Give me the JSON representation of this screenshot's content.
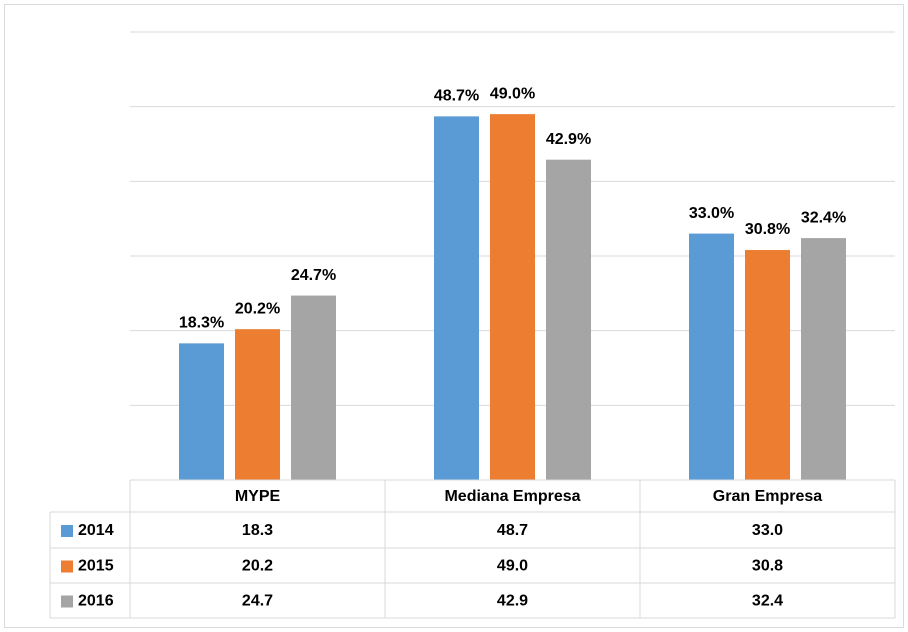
{
  "chart_data": {
    "type": "bar",
    "categories": [
      "MYPE",
      "Mediana Empresa",
      "Gran Empresa"
    ],
    "series": [
      {
        "name": "2014",
        "color": "#5b9bd5",
        "values": [
          18.3,
          48.7,
          33.0
        ],
        "value_labels": [
          "18.3%",
          "48.7%",
          "33.0%"
        ],
        "table_labels": [
          "18.3",
          "48.7",
          "33.0"
        ]
      },
      {
        "name": "2015",
        "color": "#ed7d31",
        "values": [
          20.2,
          49.0,
          30.8
        ],
        "value_labels": [
          "20.2%",
          "49.0%",
          "30.8%"
        ],
        "table_labels": [
          "20.2",
          "49.0",
          "30.8"
        ]
      },
      {
        "name": "2016",
        "color": "#a5a5a5",
        "values": [
          24.7,
          42.9,
          32.4
        ],
        "value_labels": [
          "24.7%",
          "42.9%",
          "32.4%"
        ],
        "table_labels": [
          "24.7",
          "42.9",
          "32.4"
        ]
      }
    ],
    "ylim": [
      0,
      60
    ],
    "yticks": [
      0,
      10,
      20,
      30,
      40,
      50,
      60
    ],
    "grid": true,
    "legend": "data-table"
  }
}
